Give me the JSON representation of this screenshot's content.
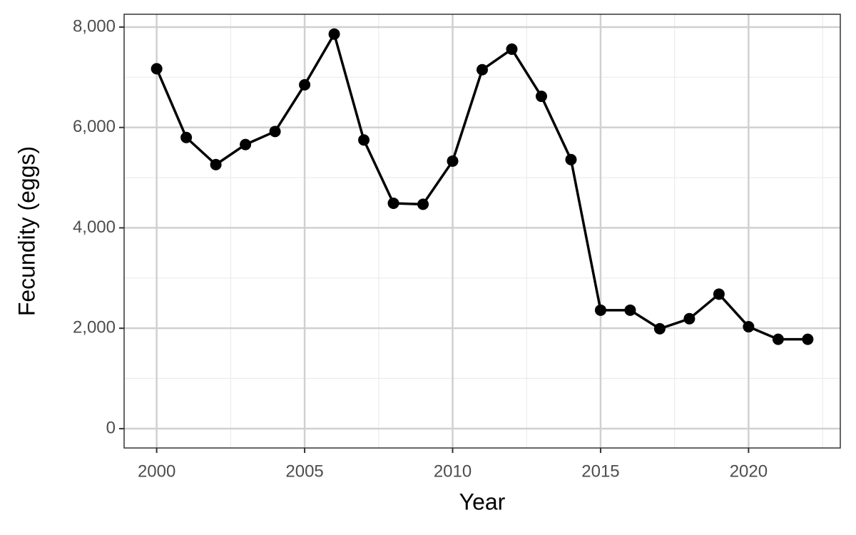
{
  "chart_data": {
    "type": "line",
    "x_label": "Year",
    "y_label": "Fecundity (eggs)",
    "x": [
      2000,
      2001,
      2002,
      2003,
      2004,
      2005,
      2006,
      2007,
      2008,
      2009,
      2010,
      2011,
      2012,
      2013,
      2014,
      2015,
      2016,
      2017,
      2018,
      2019,
      2020,
      2021,
      2022
    ],
    "series": [
      {
        "color": "#000000",
        "values": [
          7170,
          5800,
          5260,
          5660,
          5920,
          6850,
          7860,
          5750,
          4490,
          4470,
          5330,
          7150,
          7560,
          6620,
          5360,
          2360,
          2360,
          1990,
          2190,
          2680,
          2030,
          1780,
          1780
        ]
      }
    ],
    "xlim": [
      1998.9,
      2023.1
    ],
    "ylim": [
      -385,
      8255
    ],
    "xticks": [
      2000,
      2005,
      2010,
      2015,
      2020
    ],
    "yticks": [
      0,
      {
        "value": 2000,
        "label": "2,000"
      },
      {
        "value": 4000,
        "label": "4,000"
      },
      {
        "value": 6000,
        "label": "6,000"
      },
      {
        "value": 8000,
        "label": "8,000"
      }
    ],
    "grid": true,
    "minor_grid": true
  }
}
